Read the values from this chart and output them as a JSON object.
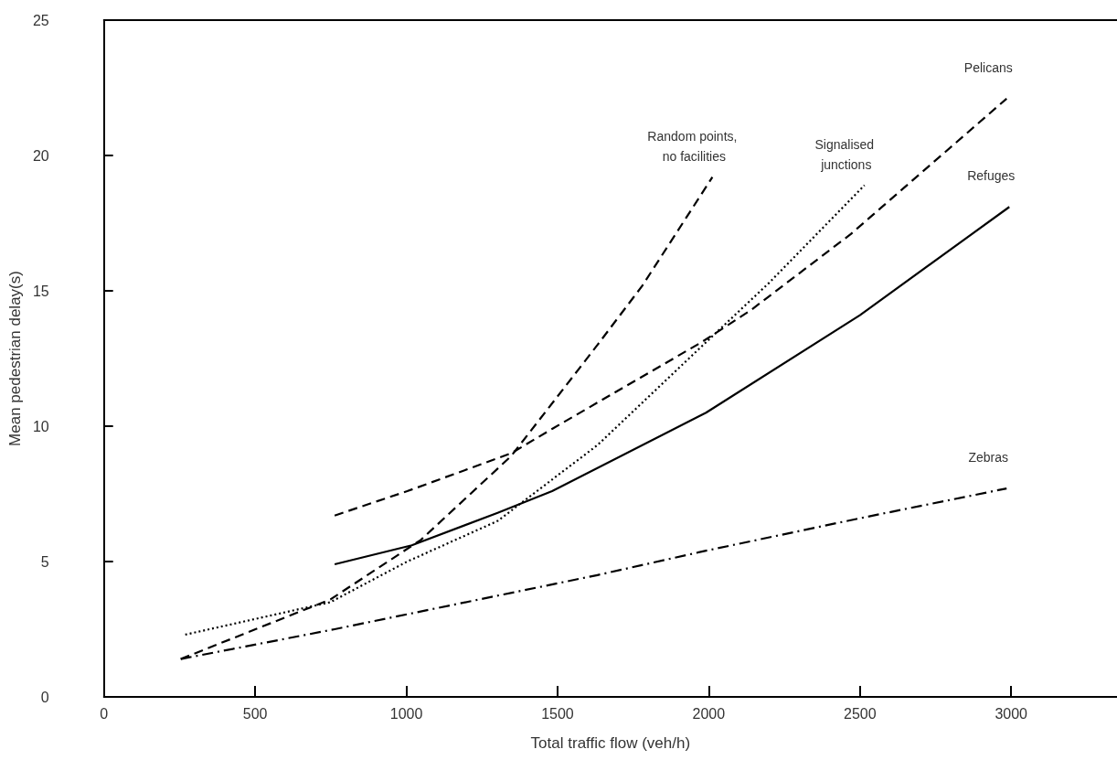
{
  "chart_data": {
    "type": "line",
    "xlabel": "Total traffic flow (veh/h)",
    "ylabel": "Mean pedestrian delay(s)",
    "xlim": [
      0,
      3350
    ],
    "xticks": [
      0,
      500,
      1000,
      1500,
      2000,
      2500,
      3000
    ],
    "ylim": [
      0,
      25
    ],
    "yticks": [
      0,
      5,
      10,
      15,
      20,
      25
    ],
    "grid": false,
    "legend": false,
    "marker": "none",
    "series": [
      {
        "name": "Random points, no facilities",
        "color": "#000000",
        "line_style": "dashed",
        "x": [
          254,
          749,
          1048,
          1347,
          1632,
          1781,
          2012
        ],
        "values": [
          1.4,
          3.6,
          5.8,
          8.9,
          13.0,
          15.2,
          19.2
        ]
      },
      {
        "name": "Signalised junctions",
        "color": "#000000",
        "line_style": "dotted",
        "x": [
          269,
          749,
          1003,
          1302,
          1632,
          1991,
          2200,
          2515
        ],
        "values": [
          2.3,
          3.5,
          5.0,
          6.5,
          9.3,
          13.1,
          15.3,
          18.9
        ]
      },
      {
        "name": "Pelicans",
        "color": "#000000",
        "line_style": "dashed",
        "x": [
          763,
          1003,
          1347,
          1482,
          1976,
          2141,
          2470,
          2985
        ],
        "values": [
          6.7,
          7.6,
          9.0,
          9.9,
          13.1,
          14.3,
          17.1,
          22.1
        ]
      },
      {
        "name": "Refuges",
        "color": "#000000",
        "line_style": "solid",
        "x": [
          763,
          1018,
          1302,
          1482,
          1991,
          2500,
          2994
        ],
        "values": [
          4.9,
          5.6,
          6.8,
          7.6,
          10.5,
          14.1,
          18.1
        ]
      },
      {
        "name": "Zebras",
        "color": "#000000",
        "line_style": "dashdot",
        "x": [
          254,
          763,
          1632,
          1991,
          2500,
          2985
        ],
        "values": [
          1.4,
          2.5,
          4.5,
          5.4,
          6.6,
          7.7
        ]
      }
    ]
  }
}
